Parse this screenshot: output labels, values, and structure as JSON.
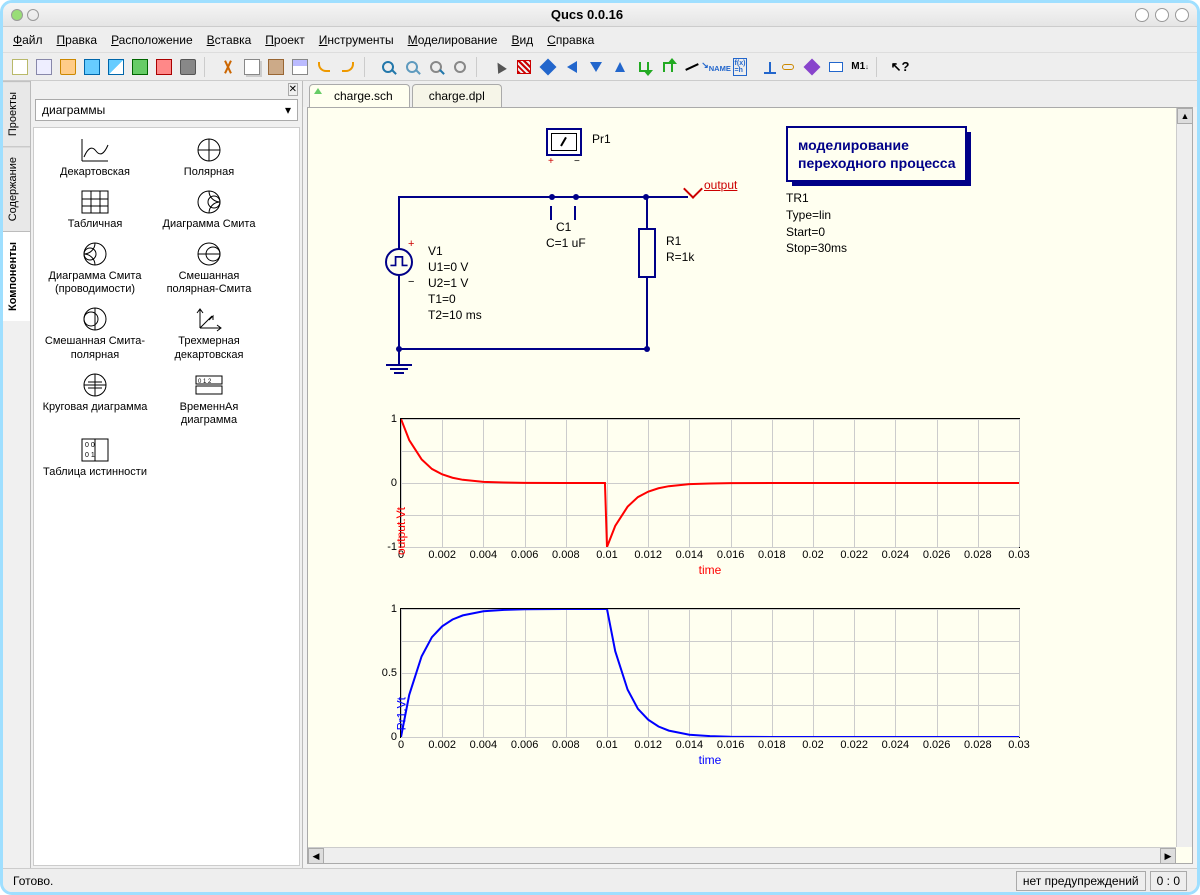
{
  "window": {
    "title": "Qucs 0.0.16"
  },
  "menu": [
    "Файл",
    "Правка",
    "Расположение",
    "Вставка",
    "Проект",
    "Инструменты",
    "Моделирование",
    "Вид",
    "Справка"
  ],
  "vtabs": [
    {
      "label": "Проекты",
      "key": "projects"
    },
    {
      "label": "Содержание",
      "key": "content"
    },
    {
      "label": "Компоненты",
      "key": "components",
      "active": true
    }
  ],
  "palette": {
    "combo": "диаграммы",
    "items": [
      {
        "label": "Декартовская",
        "icon": "cartesian"
      },
      {
        "label": "Полярная",
        "icon": "polar"
      },
      {
        "label": "Табличная",
        "icon": "tabular"
      },
      {
        "label": "Диаграмма Смита",
        "icon": "smith"
      },
      {
        "label": "Диаграмма Смита (проводимости)",
        "icon": "smith2"
      },
      {
        "label": "Смешанная полярная-Смита",
        "icon": "mixpolar"
      },
      {
        "label": "Смешанная Смита-полярная",
        "icon": "mixsmith"
      },
      {
        "label": "Трехмерная декартовская",
        "icon": "3d"
      },
      {
        "label": "Круговая диаграмма",
        "icon": "locus"
      },
      {
        "label": "ВременнАя диаграмма",
        "icon": "timing"
      },
      {
        "label": "Таблица истинности",
        "icon": "truth"
      }
    ]
  },
  "tabs": [
    {
      "label": "charge.sch",
      "active": true
    },
    {
      "label": "charge.dpl",
      "active": false
    }
  ],
  "schematic": {
    "probe": {
      "name": "Pr1"
    },
    "capacitor": {
      "name": "C1",
      "value": "C=1 uF"
    },
    "resistor": {
      "name": "R1",
      "value": "R=1k"
    },
    "source": {
      "name": "V1",
      "params": [
        "U1=0 V",
        "U2=1 V",
        "T1=0",
        "T2=10 ms"
      ]
    },
    "output_label": "output",
    "simulation": {
      "title_l1": "моделирование",
      "title_l2": "переходного процесса",
      "params": [
        "TR1",
        "Type=lin",
        "Start=0",
        "Stop=30ms"
      ]
    },
    "wire_color": "#000088"
  },
  "chart1": {
    "type": "line",
    "ylabel": "output.Vt",
    "xlabel": "time",
    "color": "#ff0000",
    "xlim": [
      0,
      0.03
    ],
    "ylim": [
      -1,
      1
    ],
    "xticks": [
      0,
      0.002,
      0.004,
      0.006,
      0.008,
      0.01,
      0.012,
      0.014,
      0.016,
      0.018,
      0.02,
      0.022,
      0.024,
      0.026,
      0.028,
      0.03
    ],
    "yticks": [
      -1,
      0,
      1
    ],
    "data": [
      [
        0,
        1
      ],
      [
        0.0004,
        0.67
      ],
      [
        0.001,
        0.37
      ],
      [
        0.0015,
        0.22
      ],
      [
        0.002,
        0.135
      ],
      [
        0.0025,
        0.082
      ],
      [
        0.003,
        0.05
      ],
      [
        0.004,
        0.018
      ],
      [
        0.005,
        0.007
      ],
      [
        0.006,
        0.002
      ],
      [
        0.008,
        0
      ],
      [
        0.0099,
        0
      ],
      [
        0.01,
        -1
      ],
      [
        0.0104,
        -0.67
      ],
      [
        0.011,
        -0.37
      ],
      [
        0.0115,
        -0.22
      ],
      [
        0.012,
        -0.135
      ],
      [
        0.0125,
        -0.082
      ],
      [
        0.013,
        -0.05
      ],
      [
        0.014,
        -0.018
      ],
      [
        0.015,
        -0.007
      ],
      [
        0.016,
        -0.002
      ],
      [
        0.018,
        0
      ],
      [
        0.03,
        0
      ]
    ]
  },
  "chart2": {
    "type": "line",
    "ylabel": "Pr1.Vt",
    "xlabel": "time",
    "color": "#0000ff",
    "xlim": [
      0,
      0.03
    ],
    "ylim": [
      0,
      1
    ],
    "xticks": [
      0,
      0.002,
      0.004,
      0.006,
      0.008,
      0.01,
      0.012,
      0.014,
      0.016,
      0.018,
      0.02,
      0.022,
      0.024,
      0.026,
      0.028,
      0.03
    ],
    "yticks": [
      0,
      0.5,
      1
    ],
    "data": [
      [
        0,
        0
      ],
      [
        0.0004,
        0.33
      ],
      [
        0.001,
        0.63
      ],
      [
        0.0015,
        0.78
      ],
      [
        0.002,
        0.865
      ],
      [
        0.0025,
        0.918
      ],
      [
        0.003,
        0.95
      ],
      [
        0.004,
        0.982
      ],
      [
        0.005,
        0.993
      ],
      [
        0.006,
        0.998
      ],
      [
        0.008,
        1
      ],
      [
        0.01,
        1
      ],
      [
        0.0104,
        0.67
      ],
      [
        0.011,
        0.37
      ],
      [
        0.0115,
        0.22
      ],
      [
        0.012,
        0.135
      ],
      [
        0.0125,
        0.082
      ],
      [
        0.013,
        0.05
      ],
      [
        0.014,
        0.018
      ],
      [
        0.015,
        0.007
      ],
      [
        0.016,
        0.002
      ],
      [
        0.018,
        0
      ],
      [
        0.03,
        0
      ]
    ]
  },
  "status": {
    "ready": "Готово.",
    "warn": "нет предупреждений",
    "coord": "0 : 0"
  },
  "colors": {
    "canvas_bg": "#fffff0",
    "schematic": "#000088",
    "grid": "#cccccc"
  }
}
